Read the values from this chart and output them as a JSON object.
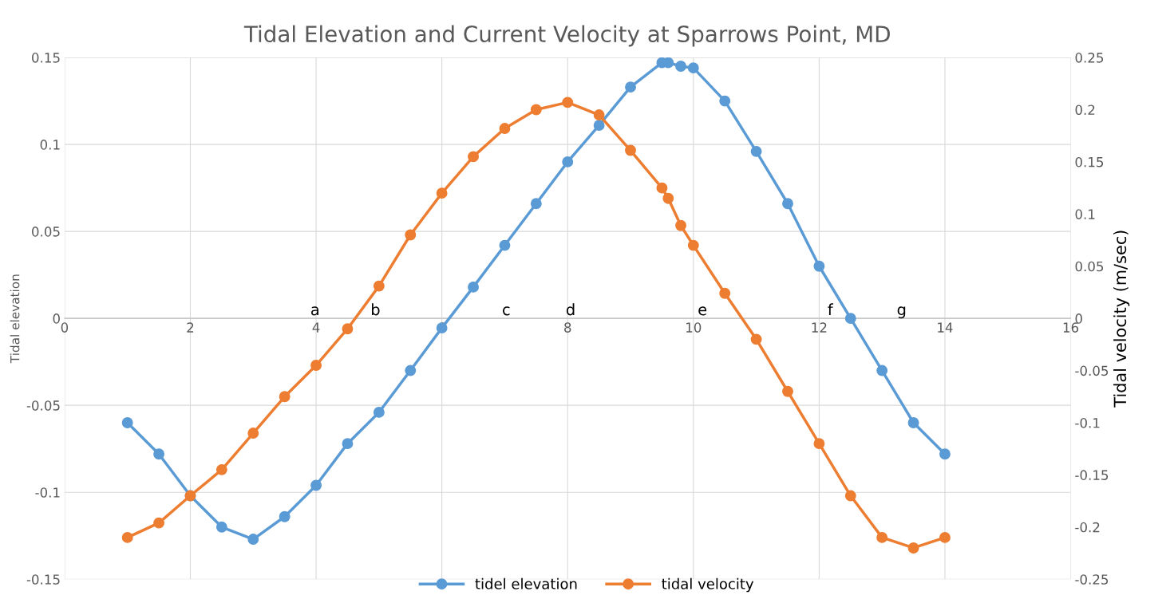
{
  "chart_data": {
    "type": "line",
    "title": "Tidal Elevation and Current Velocity at Sparrows Point, MD",
    "ylabel": "Tidal elevation",
    "y2label": "Tidal velocity (m/sec)",
    "xlim": [
      0,
      16
    ],
    "xticks": [
      0,
      2,
      4,
      6,
      8,
      10,
      12,
      14,
      16
    ],
    "ylim": [
      -0.15,
      0.15
    ],
    "yticks": [
      -0.15,
      -0.1,
      -0.05,
      0,
      0.05,
      0.1,
      0.15
    ],
    "y2lim": [
      -0.25,
      0.25
    ],
    "y2ticks": [
      -0.25,
      -0.2,
      -0.15,
      -0.1,
      -0.05,
      0,
      0.05,
      0.1,
      0.15,
      0.2,
      0.25
    ],
    "x": [
      1,
      1.5,
      2,
      2.5,
      3,
      3.5,
      4,
      4.5,
      5,
      5.5,
      6,
      6.5,
      7,
      7.5,
      8,
      8.5,
      9,
      9.5,
      9.6,
      9.8,
      10,
      10.5,
      11,
      11.5,
      12,
      12.5,
      13,
      13.5,
      14
    ],
    "series": [
      {
        "name": "tidel elevation",
        "color": "#5b9bd5",
        "values": [
          -0.06,
          -0.078,
          -0.102,
          -0.12,
          -0.127,
          -0.114,
          -0.096,
          -0.072,
          -0.054,
          -0.03,
          -0.0055,
          0.018,
          0.042,
          0.066,
          0.09,
          0.111,
          0.133,
          0.147,
          0.147,
          0.145,
          0.144,
          0.125,
          0.096,
          0.066,
          0.03,
          0,
          -0.03,
          -0.06,
          -0.078
        ]
      },
      {
        "name": "tidal velocity",
        "color": "#ed7d31",
        "axis": "y2",
        "values": [
          -0.21,
          -0.196,
          -0.17,
          -0.145,
          -0.11,
          -0.075,
          -0.045,
          -0.01,
          0.031,
          0.08,
          0.12,
          0.155,
          0.182,
          0.2,
          0.207,
          0.195,
          0.161,
          0.125,
          0.115,
          0.089,
          0.07,
          0.024,
          -0.02,
          -0.07,
          -0.12,
          -0.17,
          -0.21,
          -0.22,
          -0.21
        ]
      }
    ],
    "annotations": [
      "a",
      "b",
      "c",
      "d",
      "e",
      "f",
      "g"
    ],
    "grid": true,
    "legend": "bottom",
    "marker": "circle",
    "line_style": "solid"
  }
}
